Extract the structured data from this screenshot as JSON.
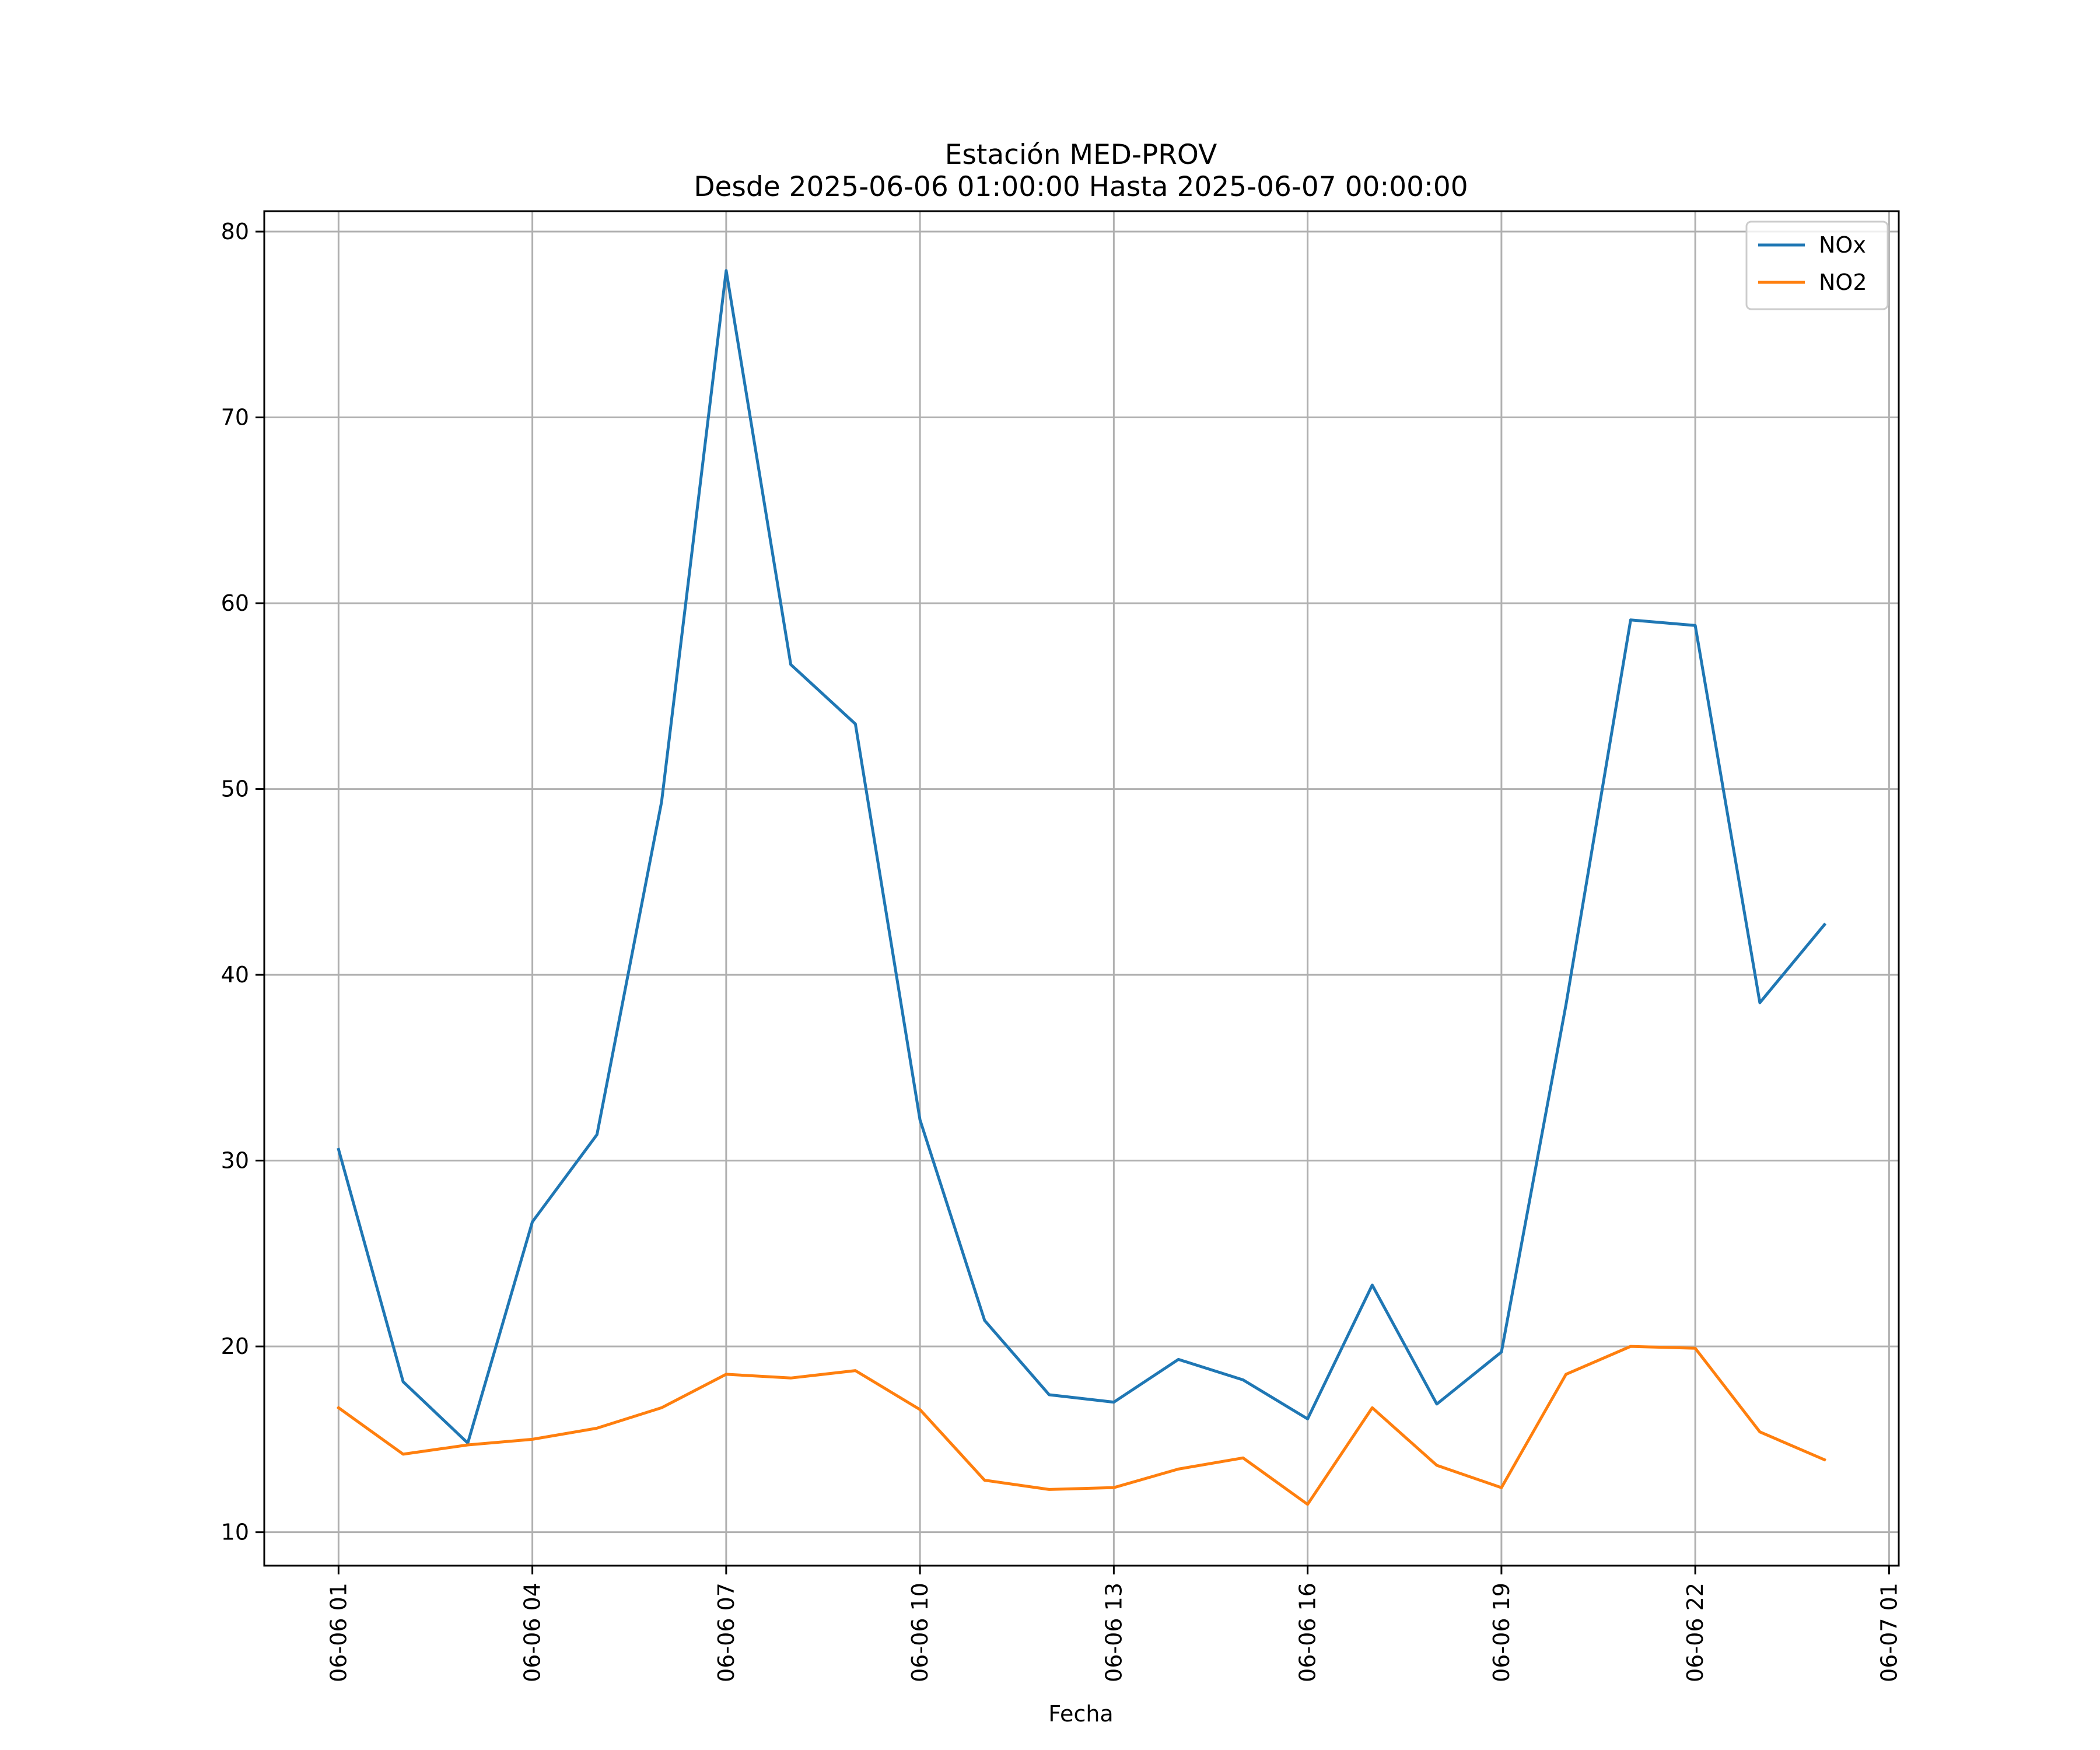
{
  "chart_data": {
    "type": "line",
    "title": "Estación MED-PROV",
    "subtitle": "Desde 2025-06-06 01:00:00 Hasta 2025-06-07 00:00:00",
    "xlabel": "Fecha",
    "ylabel": "",
    "x": [
      "06-06 01",
      "06-06 02",
      "06-06 03",
      "06-06 04",
      "06-06 05",
      "06-06 06",
      "06-06 07",
      "06-06 08",
      "06-06 09",
      "06-06 10",
      "06-06 11",
      "06-06 12",
      "06-06 13",
      "06-06 14",
      "06-06 15",
      "06-06 16",
      "06-06 17",
      "06-06 18",
      "06-06 19",
      "06-06 20",
      "06-06 21",
      "06-06 22",
      "06-06 23",
      "06-07 00"
    ],
    "x_hours": [
      1,
      2,
      3,
      4,
      5,
      6,
      7,
      8,
      9,
      10,
      11,
      12,
      13,
      14,
      15,
      16,
      17,
      18,
      19,
      20,
      21,
      22,
      23,
      24
    ],
    "series": [
      {
        "name": "NOx",
        "color": "#1f77b4",
        "values": [
          30.6,
          18.1,
          14.8,
          26.7,
          31.4,
          49.3,
          77.9,
          56.7,
          53.5,
          32.2,
          21.4,
          17.4,
          17.0,
          19.3,
          18.2,
          16.1,
          23.3,
          16.9,
          19.7,
          38.4,
          59.1,
          58.8,
          38.5,
          42.7
        ]
      },
      {
        "name": "NO2",
        "color": "#ff7f0e",
        "values": [
          16.7,
          14.2,
          14.7,
          15.0,
          15.6,
          16.7,
          18.5,
          18.3,
          18.7,
          16.6,
          12.8,
          12.3,
          12.4,
          13.4,
          14.0,
          11.5,
          16.7,
          13.6,
          12.4,
          18.5,
          20.0,
          19.9,
          15.4,
          13.9
        ]
      }
    ],
    "xticks": [
      "06-06 01",
      "06-06 04",
      "06-06 07",
      "06-06 10",
      "06-06 13",
      "06-06 16",
      "06-06 19",
      "06-06 22",
      "06-07 01"
    ],
    "xtick_hours": [
      1,
      4,
      7,
      10,
      13,
      16,
      19,
      22,
      25
    ],
    "yticks": [
      10,
      20,
      30,
      40,
      50,
      60,
      70,
      80
    ],
    "ylim": [
      8.2,
      81.1
    ],
    "xlim_hours": [
      -0.15,
      25.15
    ],
    "grid": true,
    "legend_position": "top-right"
  }
}
